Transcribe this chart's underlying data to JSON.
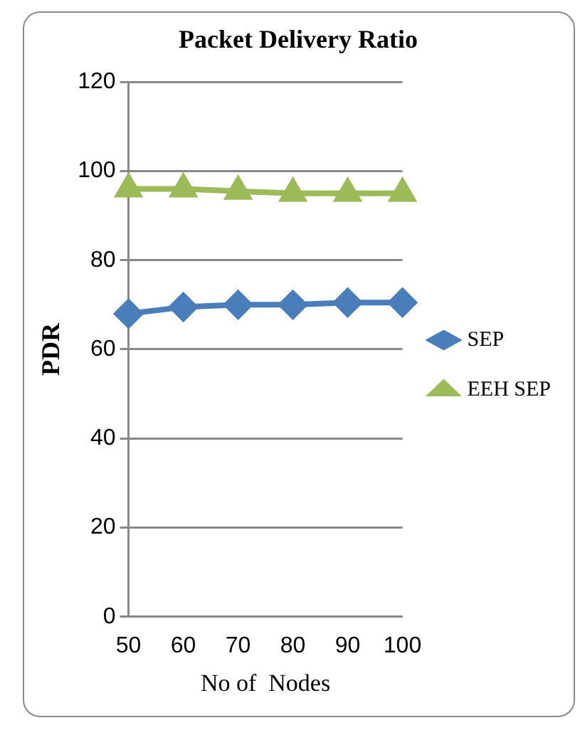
{
  "chart_data": {
    "type": "line",
    "title": "Packet Delivery Ratio",
    "xlabel": "No of  Nodes",
    "ylabel": "PDR",
    "categories": [
      "50",
      "60",
      "70",
      "80",
      "90",
      "100"
    ],
    "series": [
      {
        "name": "SEP",
        "color": "#4a7ebb",
        "values": [
          68,
          69.5,
          70,
          70,
          70.5,
          70.5
        ],
        "marker": "diamond"
      },
      {
        "name": "EEH SEP",
        "color": "#9bbb59",
        "values": [
          96,
          96,
          95.5,
          95,
          95,
          95
        ],
        "marker": "triangle"
      }
    ],
    "ylim": [
      0,
      120
    ],
    "yticks": [
      0,
      20,
      40,
      60,
      80,
      100,
      120
    ],
    "grid": "y",
    "legend": "right",
    "line_style": "solid"
  }
}
